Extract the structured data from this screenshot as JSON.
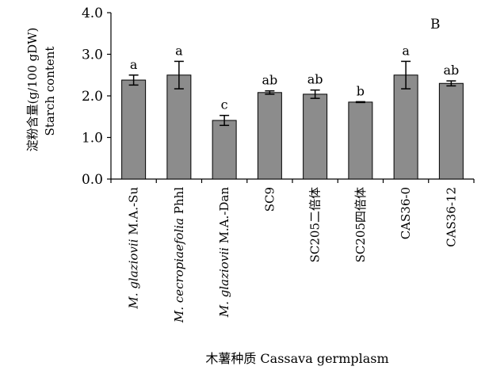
{
  "chart_data": {
    "type": "bar",
    "panel_label": "B",
    "title": "",
    "xlabel": "木薯种质 Cassava germplasm",
    "ylabel_cn": "淀粉含量(g/100 gDW)",
    "ylabel_en": "Starch content",
    "ylim": [
      0,
      4
    ],
    "yticks": [
      "0.0",
      "1.0",
      "2.0",
      "3.0",
      "4.0"
    ],
    "categories": [
      {
        "italic": "M. glaziovii",
        "plain": " M.A.-Su"
      },
      {
        "italic": "M. cecropiaefolia",
        "plain": " Phhl"
      },
      {
        "italic": "M. glaziovii",
        "plain": " M.A.-Dan"
      },
      {
        "italic": "",
        "plain": "SC9"
      },
      {
        "italic": "",
        "plain": "SC205二倍体"
      },
      {
        "italic": "",
        "plain": "SC205四倍体"
      },
      {
        "italic": "",
        "plain": "CAS36-0"
      },
      {
        "italic": "",
        "plain": "CAS36-12"
      }
    ],
    "values": [
      2.38,
      2.5,
      1.41,
      2.08,
      2.04,
      1.85,
      2.5,
      2.3
    ],
    "errors": [
      0.12,
      0.33,
      0.12,
      0.04,
      0.1,
      0.01,
      0.33,
      0.06
    ],
    "significance": [
      "a",
      "a",
      "c",
      "ab",
      "ab",
      "b",
      "a",
      "ab"
    ],
    "bar_color": "#8c8c8c",
    "grid": false
  }
}
